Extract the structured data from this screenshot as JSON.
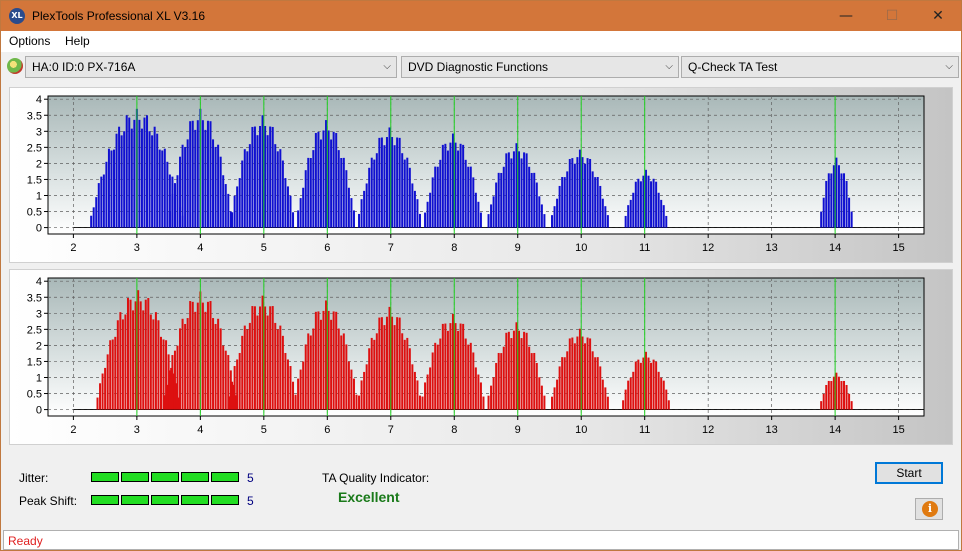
{
  "window": {
    "title": "PlexTools Professional XL V3.16",
    "app_icon_text": "XL",
    "minimize": "—",
    "maximize": "☐",
    "close": "✕"
  },
  "menu": [
    "Options",
    "Help"
  ],
  "toolbar": {
    "drive": "HA:0 ID:0  PX-716A",
    "function": "DVD Diagnostic Functions",
    "test": "Q-Check TA Test",
    "dropdown_arrow": "⌵"
  },
  "colors": {
    "top_bars": "#1010d0",
    "bottom_bars": "#dd1010",
    "marker_lines": "#20d020",
    "accent": "#d3763a"
  },
  "chart_data": [
    {
      "type": "bar",
      "name": "top",
      "xlim": [
        1.6,
        15.4
      ],
      "ylim": [
        -0.2,
        4.1
      ],
      "xticks": [
        "2",
        "3",
        "4",
        "5",
        "6",
        "7",
        "8",
        "9",
        "10",
        "11",
        "12",
        "13",
        "14",
        "15"
      ],
      "yticks": [
        "0",
        "0.5",
        "1",
        "1.5",
        "2",
        "2.5",
        "3",
        "3.5",
        "4"
      ],
      "markers": [
        3,
        4,
        5,
        6,
        7,
        8,
        9,
        10,
        11,
        14
      ],
      "peaks": [
        {
          "center": 3.0,
          "height": 3.7,
          "halfwidth": 0.7
        },
        {
          "center": 4.0,
          "height": 3.7,
          "halfwidth": 0.48
        },
        {
          "center": 4.98,
          "height": 3.5,
          "halfwidth": 0.48
        },
        {
          "center": 5.98,
          "height": 3.35,
          "halfwidth": 0.45
        },
        {
          "center": 6.98,
          "height": 3.12,
          "halfwidth": 0.46
        },
        {
          "center": 7.98,
          "height": 2.93,
          "halfwidth": 0.45
        },
        {
          "center": 8.98,
          "height": 2.63,
          "halfwidth": 0.44
        },
        {
          "center": 9.98,
          "height": 2.43,
          "halfwidth": 0.42
        },
        {
          "center": 11.02,
          "height": 1.8,
          "halfwidth": 0.32
        },
        {
          "center": 14.02,
          "height": 2.18,
          "halfwidth": 0.25
        }
      ]
    },
    {
      "type": "bar",
      "name": "bottom",
      "xlim": [
        1.6,
        15.4
      ],
      "ylim": [
        -0.2,
        4.1
      ],
      "xticks": [
        "2",
        "3",
        "4",
        "5",
        "6",
        "7",
        "8",
        "9",
        "10",
        "11",
        "12",
        "13",
        "14",
        "15"
      ],
      "yticks": [
        "0",
        "0.5",
        "1",
        "1.5",
        "2",
        "2.5",
        "3",
        "3.5",
        "4"
      ],
      "markers": [
        3,
        4,
        5,
        6,
        7,
        8,
        9,
        10,
        11,
        14
      ],
      "peaks": [
        {
          "center": 3.02,
          "height": 3.72,
          "halfwidth": 0.62
        },
        {
          "center": 4.0,
          "height": 3.68,
          "halfwidth": 0.55
        },
        {
          "center": 4.98,
          "height": 3.55,
          "halfwidth": 0.5
        },
        {
          "center": 5.98,
          "height": 3.4,
          "halfwidth": 0.48
        },
        {
          "center": 6.98,
          "height": 3.2,
          "halfwidth": 0.47
        },
        {
          "center": 7.98,
          "height": 2.98,
          "halfwidth": 0.46
        },
        {
          "center": 8.98,
          "height": 2.72,
          "halfwidth": 0.44
        },
        {
          "center": 9.98,
          "height": 2.52,
          "halfwidth": 0.43
        },
        {
          "center": 11.02,
          "height": 1.8,
          "halfwidth": 0.36
        },
        {
          "center": 14.02,
          "height": 1.15,
          "halfwidth": 0.22
        }
      ]
    }
  ],
  "results": {
    "jitter_label": "Jitter:",
    "jitter_value": "5",
    "jitter_level": 5,
    "peak_shift_label": "Peak Shift:",
    "peak_shift_value": "5",
    "peak_shift_level": 5,
    "ta_label": "TA Quality Indicator:",
    "ta_value": "Excellent"
  },
  "buttons": {
    "start": "Start",
    "info_icon": "i"
  },
  "status": "Ready"
}
